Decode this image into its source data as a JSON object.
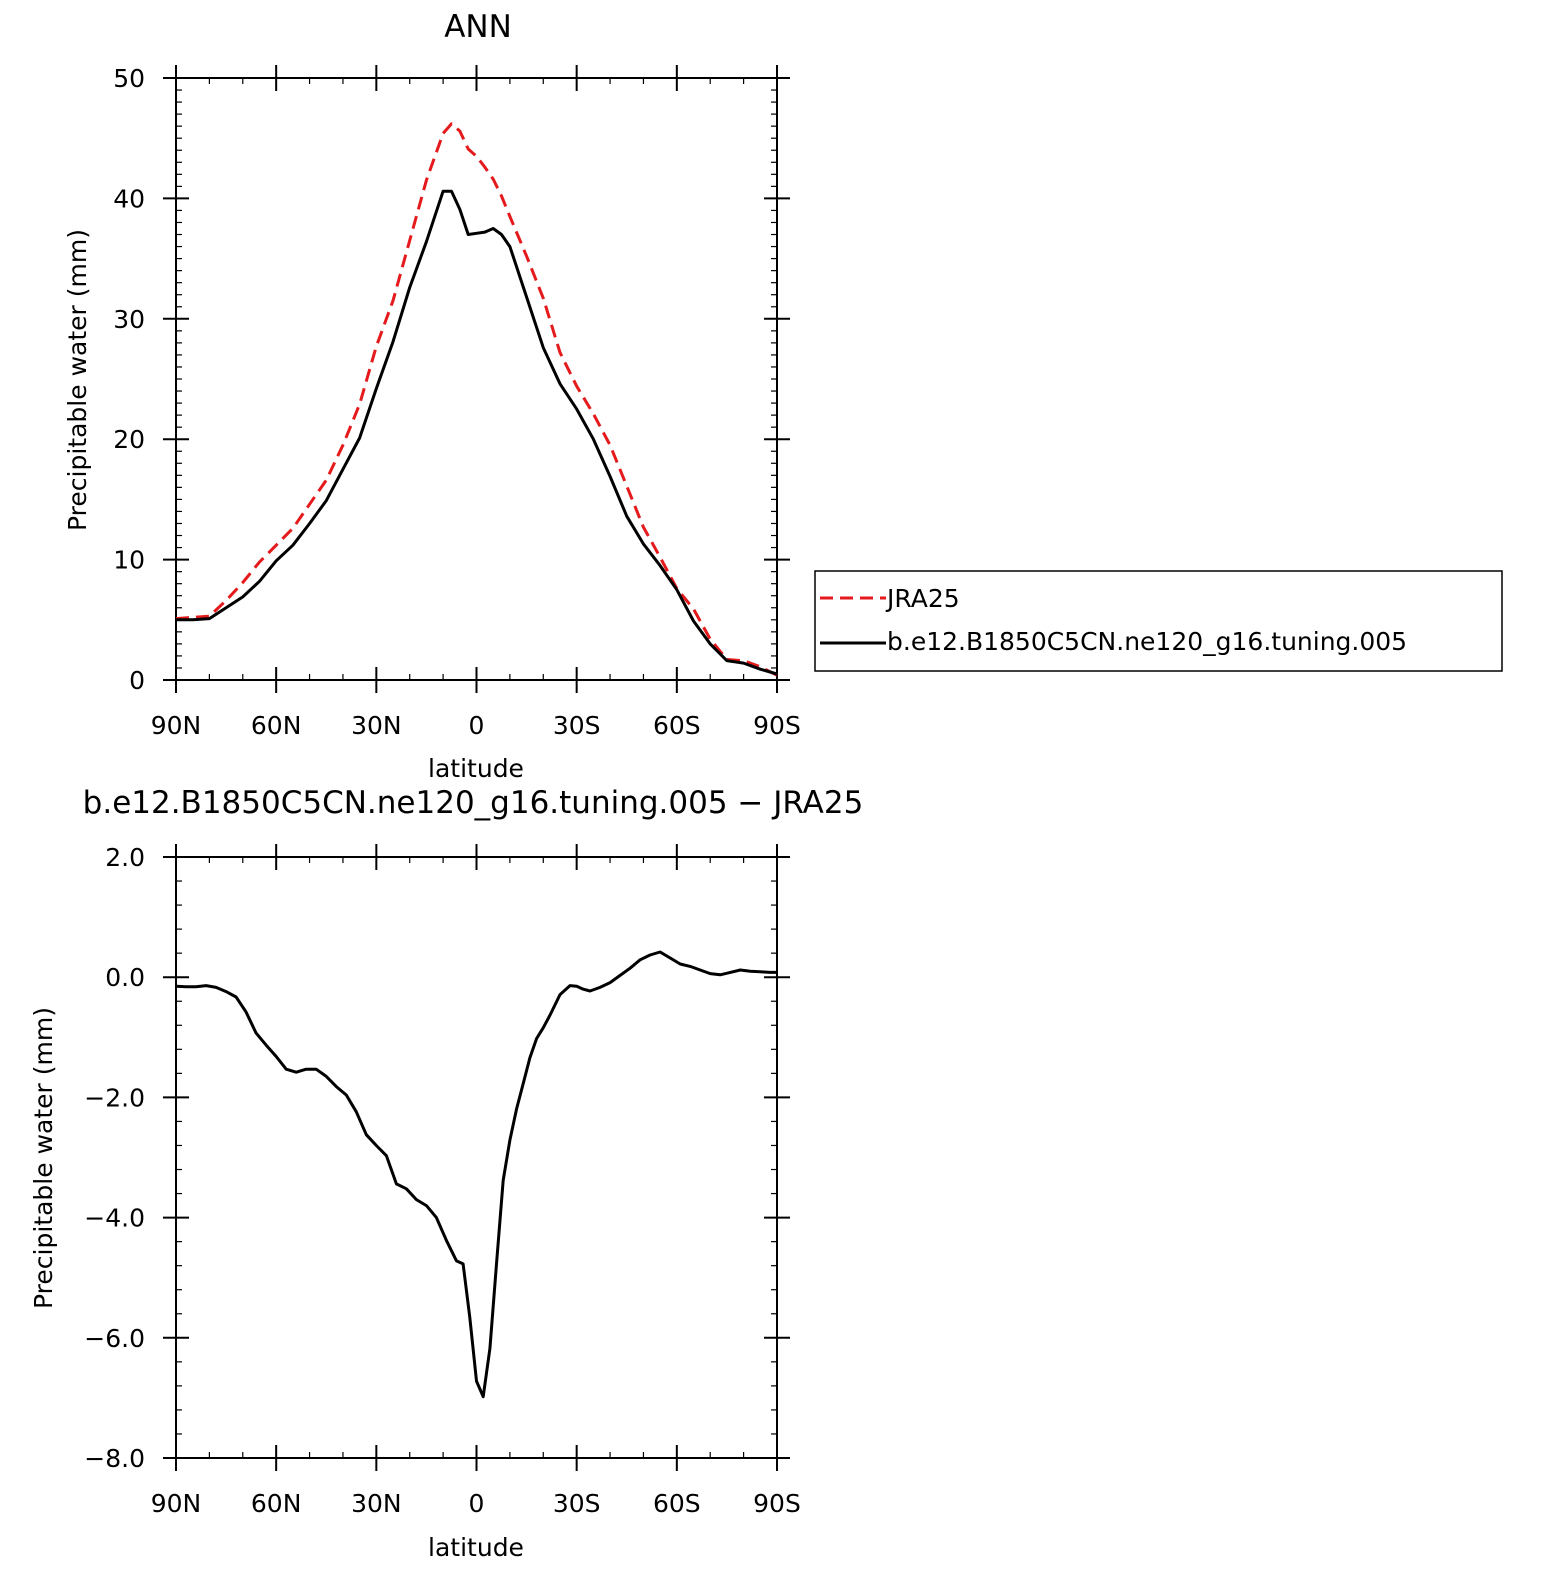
{
  "chart_data": [
    {
      "type": "line",
      "title": "ANN",
      "xlabel": "latitude",
      "ylabel": "Precipitable water (mm)",
      "xlim": [
        90,
        -90
      ],
      "ylim": [
        0,
        50
      ],
      "x_ticks": [
        {
          "value": 90,
          "label": "90N"
        },
        {
          "value": 60,
          "label": "60N"
        },
        {
          "value": 30,
          "label": "30N"
        },
        {
          "value": 0,
          "label": "0"
        },
        {
          "value": -30,
          "label": "30S"
        },
        {
          "value": -60,
          "label": "60S"
        },
        {
          "value": -90,
          "label": "90S"
        }
      ],
      "y_ticks": [
        {
          "value": 0,
          "label": "0"
        },
        {
          "value": 10,
          "label": "10"
        },
        {
          "value": 20,
          "label": "20"
        },
        {
          "value": 30,
          "label": "30"
        },
        {
          "value": 40,
          "label": "40"
        },
        {
          "value": 50,
          "label": "50"
        }
      ],
      "grid": false,
      "legend_position": "right",
      "series": [
        {
          "name": "JRA25",
          "color": "#e41a1c",
          "dash": "dashed",
          "x": [
            90,
            85,
            80,
            75,
            70,
            65,
            60,
            55,
            50,
            45,
            40,
            35,
            30,
            25,
            20,
            15,
            10,
            7.5,
            5,
            2.5,
            0,
            -2.5,
            -5,
            -7.5,
            -10,
            -15,
            -20,
            -25,
            -30,
            -35,
            -40,
            -45,
            -50,
            -55,
            -60,
            -65,
            -70,
            -75,
            -80,
            -85,
            -90
          ],
          "y": [
            5.1,
            5.2,
            5.3,
            6.6,
            8.1,
            9.8,
            11.2,
            12.6,
            14.6,
            16.6,
            19.5,
            22.9,
            27.7,
            31.5,
            36.5,
            41.5,
            45.4,
            46.2,
            45.6,
            44.1,
            43.5,
            42.6,
            41.6,
            40.2,
            38.5,
            35.2,
            31.7,
            27.2,
            24.4,
            22.1,
            19.5,
            16.1,
            12.7,
            10.2,
            7.6,
            5.9,
            3.4,
            1.7,
            1.6,
            1.1,
            0.4
          ]
        },
        {
          "name": "b.e12.B1850C5CN.ne120_g16.tuning.005",
          "color": "#000000",
          "dash": "solid",
          "x": [
            90,
            85,
            80,
            75,
            70,
            65,
            60,
            55,
            50,
            45,
            40,
            35,
            30,
            25,
            20,
            15,
            10,
            7.5,
            5,
            2.5,
            0,
            -2.5,
            -5,
            -7.5,
            -10,
            -15,
            -20,
            -25,
            -30,
            -35,
            -40,
            -45,
            -50,
            -55,
            -60,
            -65,
            -70,
            -75,
            -80,
            -85,
            -90
          ],
          "y": [
            5.0,
            5.0,
            5.1,
            6.0,
            6.9,
            8.2,
            9.9,
            11.2,
            13.0,
            14.9,
            17.5,
            20.1,
            24.2,
            28.1,
            32.6,
            36.4,
            40.6,
            40.6,
            39.1,
            37.0,
            37.1,
            37.2,
            37.5,
            37.0,
            36.0,
            31.8,
            27.6,
            24.6,
            22.5,
            20.0,
            16.9,
            13.6,
            11.3,
            9.5,
            7.5,
            4.9,
            3.0,
            1.6,
            1.4,
            0.9,
            0.5
          ]
        }
      ]
    },
    {
      "type": "line",
      "title": "b.e12.B1850C5CN.ne120_g16.tuning.005 − JRA25",
      "xlabel": "latitude",
      "ylabel": "Precipitable water (mm)",
      "xlim": [
        90,
        -90
      ],
      "ylim": [
        -8,
        2
      ],
      "x_ticks": [
        {
          "value": 90,
          "label": "90N"
        },
        {
          "value": 60,
          "label": "60N"
        },
        {
          "value": 30,
          "label": "30N"
        },
        {
          "value": 0,
          "label": "0"
        },
        {
          "value": -30,
          "label": "30S"
        },
        {
          "value": -60,
          "label": "60S"
        },
        {
          "value": -90,
          "label": "90S"
        }
      ],
      "y_ticks": [
        {
          "value": -8,
          "label": "−8.0"
        },
        {
          "value": -6,
          "label": "−6.0"
        },
        {
          "value": -4,
          "label": "−4.0"
        },
        {
          "value": -2,
          "label": "−2.0"
        },
        {
          "value": 0,
          "label": "0.0"
        },
        {
          "value": 2,
          "label": "2.0"
        }
      ],
      "grid": false,
      "series": [
        {
          "color": "#000000",
          "dash": "solid",
          "x": [
            90,
            87,
            84,
            81,
            78,
            75,
            72,
            69,
            66,
            63,
            60,
            57,
            54,
            51,
            48,
            45,
            42,
            39,
            36,
            33,
            30,
            27,
            24,
            21,
            18,
            15,
            12,
            9,
            6,
            4,
            2,
            0,
            -2,
            -4,
            -6,
            -8,
            -10,
            -12,
            -14,
            -16,
            -18,
            -20,
            -22,
            -25,
            -28,
            -30,
            -32,
            -34,
            -37,
            -40,
            -43,
            -46,
            -49,
            -52,
            -55,
            -58,
            -61,
            -64,
            -67,
            -70,
            -73,
            -76,
            -79,
            -82,
            -85,
            -88,
            -90
          ],
          "y": [
            -0.15,
            -0.16,
            -0.16,
            -0.14,
            -0.17,
            -0.24,
            -0.33,
            -0.58,
            -0.93,
            -1.13,
            -1.32,
            -1.53,
            -1.58,
            -1.53,
            -1.53,
            -1.65,
            -1.82,
            -1.96,
            -2.24,
            -2.62,
            -2.8,
            -2.97,
            -3.44,
            -3.52,
            -3.7,
            -3.8,
            -4.0,
            -4.38,
            -4.72,
            -4.77,
            -5.66,
            -6.72,
            -6.98,
            -6.18,
            -4.77,
            -3.38,
            -2.71,
            -2.19,
            -1.77,
            -1.34,
            -1.02,
            -0.84,
            -0.63,
            -0.29,
            -0.14,
            -0.15,
            -0.2,
            -0.23,
            -0.17,
            -0.09,
            0.03,
            0.15,
            0.29,
            0.37,
            0.42,
            0.32,
            0.22,
            0.18,
            0.12,
            0.06,
            0.04,
            0.08,
            0.12,
            0.1,
            0.09,
            0.08,
            0.08
          ]
        }
      ]
    }
  ]
}
